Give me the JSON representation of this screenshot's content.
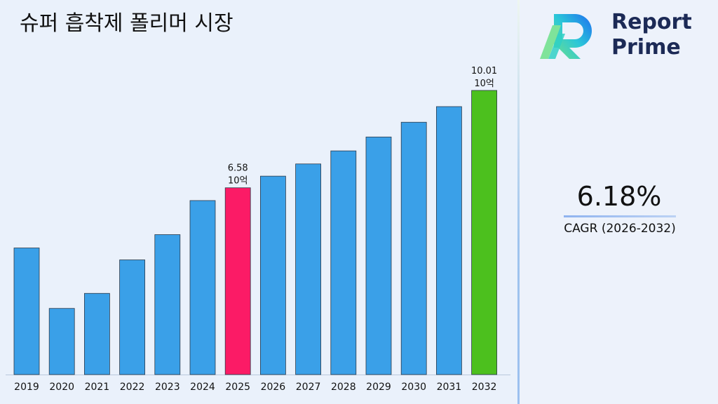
{
  "title": "슈퍼 흡착제 폴리머 시장",
  "logo": {
    "line1": "Report",
    "line2": "Prime"
  },
  "cagr": {
    "value": "6.18%",
    "label": "CAGR (2026-2032)"
  },
  "colors": {
    "bar": "#3aa0e8",
    "highlight_2025": "#fb1b66",
    "highlight_2032": "#4cc01e"
  },
  "chart_data": {
    "type": "bar",
    "categories": [
      "2019",
      "2020",
      "2021",
      "2022",
      "2023",
      "2024",
      "2025",
      "2026",
      "2027",
      "2028",
      "2029",
      "2030",
      "2031",
      "2032"
    ],
    "values": [
      4.46,
      2.33,
      2.86,
      4.04,
      4.93,
      6.13,
      6.58,
      6.99,
      7.42,
      7.88,
      8.37,
      8.89,
      9.44,
      10.01
    ],
    "highlights": [
      {
        "category": "2025",
        "value_label": "6.58",
        "unit_label": "10억",
        "color": "#fb1b66"
      },
      {
        "category": "2032",
        "value_label": "10.01",
        "unit_label": "10억",
        "color": "#4cc01e"
      }
    ],
    "title": "슈퍼 흡착제 폴리머 시장",
    "xlabel": "",
    "ylabel": "",
    "ylim": [
      0,
      12.5
    ],
    "grid": false,
    "legend": "none"
  }
}
